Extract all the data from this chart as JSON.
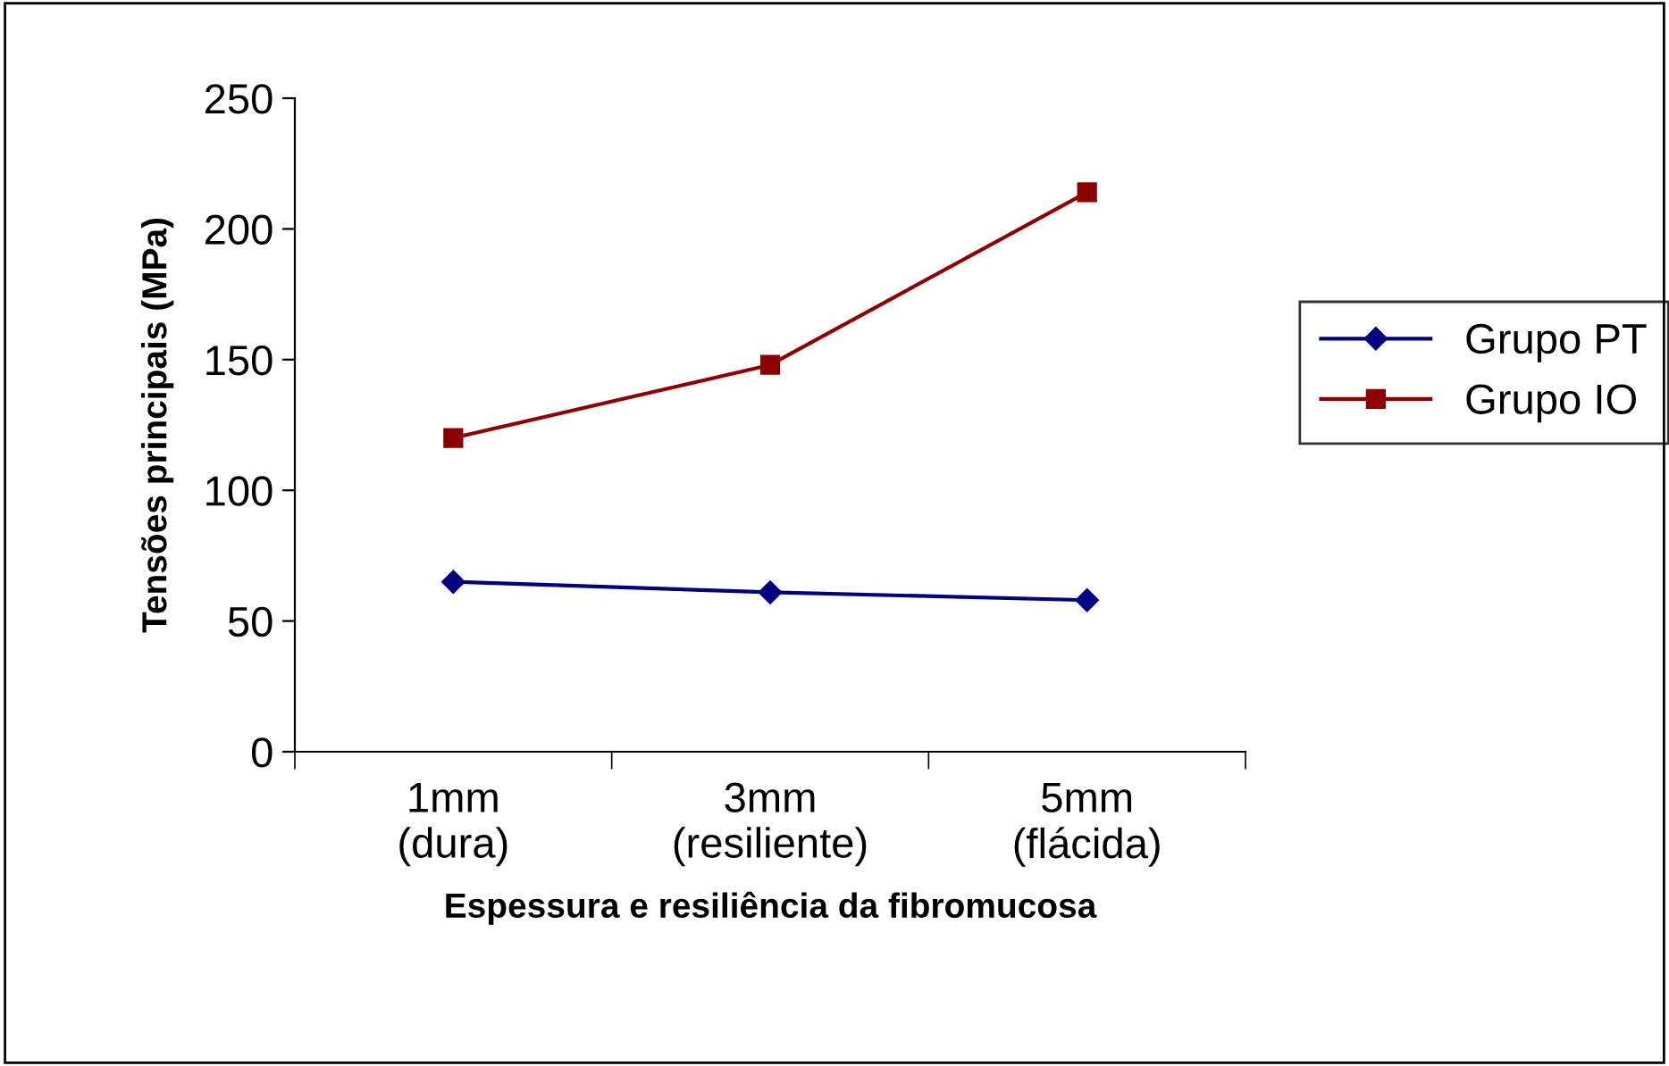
{
  "chart_data": {
    "type": "line",
    "ylabel": "Tensões principais (MPa)",
    "xlabel": "Espessura e resiliência da fibromucosa",
    "categories": [
      "1mm\n(dura)",
      "3mm\n(resiliente)",
      "5mm\n(flácida)"
    ],
    "series": [
      {
        "name": "Grupo PT",
        "color": "#000080",
        "marker": "diamond",
        "values": [
          65,
          61,
          58
        ]
      },
      {
        "name": "Grupo IO",
        "color": "#8b0000",
        "marker": "square",
        "values": [
          120,
          148,
          214
        ]
      }
    ],
    "ylim": [
      0,
      250
    ],
    "yticks": [
      0,
      50,
      100,
      150,
      200,
      250
    ],
    "grid": false,
    "legend": "right",
    "line_style": "solid"
  }
}
